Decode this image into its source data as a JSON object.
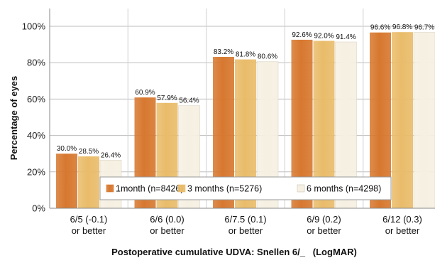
{
  "chart_data": {
    "type": "bar",
    "title": "",
    "xlabel": "Postoperative cumulative UDVA: Snellen 6/_   (LogMAR)",
    "ylabel": "Percentage of eyes",
    "ylim": [
      0,
      100
    ],
    "yticks": [
      "0%",
      "20%",
      "40%",
      "60%",
      "80%",
      "100%"
    ],
    "grid": true,
    "legend_position": "bottom-center",
    "categories": [
      [
        "6/5 (-0.1)",
        "or better"
      ],
      [
        "6/6 (0.0)",
        "or better"
      ],
      [
        "6/7.5 (0.1)",
        "or better"
      ],
      [
        "6/9 (0.2)",
        "or better"
      ],
      [
        "6/12 (0.3)",
        "or better"
      ]
    ],
    "series": [
      {
        "name": "1month (n=8426)",
        "color": "#d7782f",
        "values": [
          30.0,
          60.9,
          83.2,
          92.6,
          96.6
        ],
        "labels": [
          "30.0%",
          "60.9%",
          "83.2%",
          "92.6%",
          "96.6%"
        ]
      },
      {
        "name": "3 months (n=5276)",
        "color": "#e9bc6a",
        "values": [
          28.5,
          57.9,
          81.8,
          92.0,
          96.8
        ],
        "labels": [
          "28.5%",
          "57.9%",
          "81.8%",
          "92.0%",
          "96.8%"
        ]
      },
      {
        "name": "6 months (n=4298)",
        "color": "#f6f0e2",
        "values": [
          26.4,
          56.4,
          80.6,
          91.4,
          96.7
        ],
        "labels": [
          "26.4%",
          "56.4%",
          "80.6%",
          "91.4%",
          "96.7%"
        ]
      }
    ]
  }
}
